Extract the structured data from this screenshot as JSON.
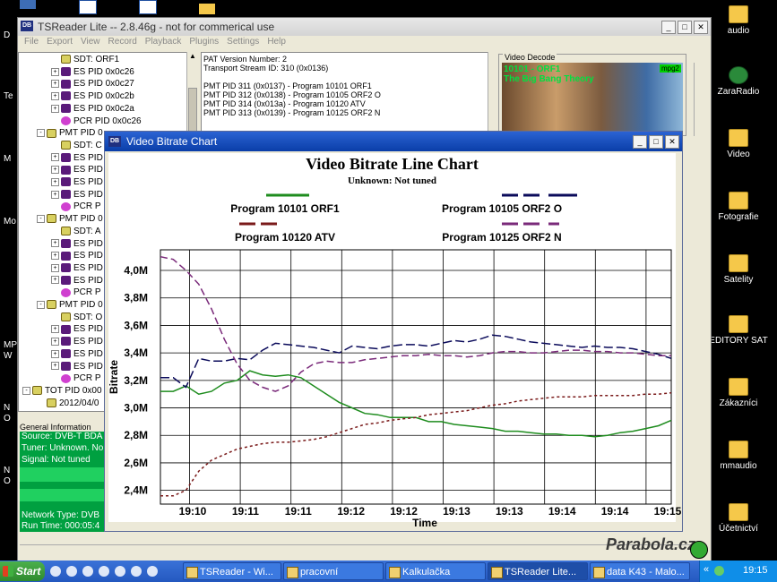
{
  "desktop": {
    "right_icons": [
      "audio",
      "ZaraRadio",
      "Video",
      "Fotografie",
      "Satelity",
      "EDITORY SAT",
      "Zákazníci",
      "mmaudio",
      "Účetnictví"
    ],
    "left_fragments": [
      "D",
      "Te",
      "M",
      "Mo",
      "MP",
      "W",
      "N",
      "O",
      "N",
      "O"
    ]
  },
  "main_window": {
    "title": "TSReader Lite -- 2.8.46g - not for commerical use",
    "menu": [
      "File",
      "Export",
      "View",
      "Record",
      "Playback",
      "Plugins",
      "Settings",
      "Help"
    ],
    "tree": [
      {
        "indent": 2,
        "box": "",
        "icon": "sdt",
        "label": "SDT: ORF1"
      },
      {
        "indent": 2,
        "box": "+",
        "icon": "es",
        "label": "ES PID 0x0c26"
      },
      {
        "indent": 2,
        "box": "+",
        "icon": "es",
        "label": "ES PID 0x0c27"
      },
      {
        "indent": 2,
        "box": "+",
        "icon": "es",
        "label": "ES PID 0x0c2b"
      },
      {
        "indent": 2,
        "box": "+",
        "icon": "es",
        "label": "ES PID 0x0c2a"
      },
      {
        "indent": 2,
        "box": "",
        "icon": "pcr",
        "label": "PCR PID 0x0c26"
      },
      {
        "indent": 1,
        "box": "-",
        "icon": "pmt",
        "label": "PMT PID 0"
      },
      {
        "indent": 2,
        "box": "",
        "icon": "sdt",
        "label": "SDT: C"
      },
      {
        "indent": 2,
        "box": "+",
        "icon": "es",
        "label": "ES PID"
      },
      {
        "indent": 2,
        "box": "+",
        "icon": "es",
        "label": "ES PID"
      },
      {
        "indent": 2,
        "box": "+",
        "icon": "es",
        "label": "ES PID"
      },
      {
        "indent": 2,
        "box": "+",
        "icon": "es",
        "label": "ES PID"
      },
      {
        "indent": 2,
        "box": "",
        "icon": "pcr",
        "label": "PCR P"
      },
      {
        "indent": 1,
        "box": "-",
        "icon": "pmt",
        "label": "PMT PID 0"
      },
      {
        "indent": 2,
        "box": "",
        "icon": "sdt",
        "label": "SDT: A"
      },
      {
        "indent": 2,
        "box": "+",
        "icon": "es",
        "label": "ES PID"
      },
      {
        "indent": 2,
        "box": "+",
        "icon": "es",
        "label": "ES PID"
      },
      {
        "indent": 2,
        "box": "+",
        "icon": "es",
        "label": "ES PID"
      },
      {
        "indent": 2,
        "box": "+",
        "icon": "es",
        "label": "ES PID"
      },
      {
        "indent": 2,
        "box": "",
        "icon": "pcr",
        "label": "PCR P"
      },
      {
        "indent": 1,
        "box": "-",
        "icon": "pmt",
        "label": "PMT PID 0"
      },
      {
        "indent": 2,
        "box": "",
        "icon": "sdt",
        "label": "SDT: O"
      },
      {
        "indent": 2,
        "box": "+",
        "icon": "es",
        "label": "ES PID"
      },
      {
        "indent": 2,
        "box": "+",
        "icon": "es",
        "label": "ES PID"
      },
      {
        "indent": 2,
        "box": "+",
        "icon": "es",
        "label": "ES PID"
      },
      {
        "indent": 2,
        "box": "+",
        "icon": "es",
        "label": "ES PID"
      },
      {
        "indent": 2,
        "box": "",
        "icon": "pcr",
        "label": "PCR P"
      },
      {
        "indent": 0,
        "box": "-",
        "icon": "sdt",
        "label": "TOT PID 0x00"
      },
      {
        "indent": 1,
        "box": "",
        "icon": "sdt",
        "label": "2012/04/0"
      }
    ],
    "info_lines": [
      "PAT Version Number: 2",
      "Transport Stream ID: 310 (0x0136)",
      "",
      "PMT PID 311 (0x0137) - Program 10101 ORF1",
      "PMT PID 312 (0x0138) - Program 10105 ORF2 O",
      "PMT PID 314 (0x013a) - Program 10120 ATV",
      "PMT PID 313 (0x0139) - Program 10125 ORF2 N"
    ],
    "video_decode": {
      "label": "Video Decode",
      "channel": "10101 - ORF1",
      "show": "The Big Bang Theory",
      "badge": "mpg2"
    },
    "general_info": {
      "header": "General Information",
      "lines": [
        "Source: DVB-T BDA",
        "Tuner: Unknown. No",
        "Signal: Not tuned",
        "Network Type: DVB",
        "Run Time: 000:05:4"
      ]
    }
  },
  "chart_window": {
    "title": "Video Bitrate Chart"
  },
  "chart_data": {
    "type": "line",
    "title": "Video Bitrate Line Chart",
    "subtitle": "Unknown: Not tuned",
    "xlabel": "Time",
    "ylabel": "Bitrate",
    "x_tick_labels": [
      "19:10",
      "19:11",
      "19:11",
      "19:12",
      "19:12",
      "19:13",
      "19:13",
      "19:14",
      "19:14",
      "19:15"
    ],
    "y_tick_labels": [
      "2,4M",
      "2,6M",
      "2,8M",
      "3,0M",
      "3,2M",
      "3,4M",
      "3,6M",
      "3,8M",
      "4,0M"
    ],
    "ylim": [
      2.3,
      4.15
    ],
    "xlim": [
      0,
      20
    ],
    "grid": true,
    "legend_position": "top",
    "series": [
      {
        "name": "Program 10101 ORF1",
        "color": "#1e8c1e",
        "dash": "solid",
        "x": [
          0,
          0.5,
          1,
          1.5,
          2,
          2.5,
          3,
          3.5,
          4,
          4.5,
          5,
          5.5,
          6,
          6.5,
          7,
          7.5,
          8,
          8.5,
          9,
          9.5,
          10,
          10.5,
          11,
          11.5,
          12,
          12.5,
          13,
          13.5,
          14,
          14.5,
          15,
          15.5,
          16,
          16.5,
          17,
          17.5,
          18,
          18.5,
          19,
          19.5,
          20
        ],
        "y": [
          3.12,
          3.12,
          3.16,
          3.1,
          3.12,
          3.18,
          3.2,
          3.27,
          3.24,
          3.23,
          3.24,
          3.22,
          3.16,
          3.1,
          3.04,
          3.0,
          2.96,
          2.95,
          2.93,
          2.93,
          2.93,
          2.9,
          2.9,
          2.88,
          2.87,
          2.86,
          2.85,
          2.83,
          2.83,
          2.82,
          2.81,
          2.81,
          2.8,
          2.8,
          2.79,
          2.8,
          2.82,
          2.83,
          2.85,
          2.87,
          2.91
        ]
      },
      {
        "name": "Program 10105 ORF2 O",
        "color": "#0a0a5a",
        "dash": "10,4",
        "x": [
          0,
          0.5,
          1,
          1.5,
          2,
          2.5,
          3,
          3.5,
          4,
          4.5,
          5,
          5.5,
          6,
          6.5,
          7,
          7.5,
          8,
          8.5,
          9,
          9.5,
          10,
          10.5,
          11,
          11.5,
          12,
          12.5,
          13,
          13.5,
          14,
          14.5,
          15,
          15.5,
          16,
          16.5,
          17,
          17.5,
          18,
          18.5,
          19,
          19.5,
          20
        ],
        "y": [
          3.22,
          3.22,
          3.15,
          3.36,
          3.34,
          3.34,
          3.36,
          3.35,
          3.42,
          3.47,
          3.46,
          3.45,
          3.44,
          3.42,
          3.4,
          3.45,
          3.44,
          3.43,
          3.45,
          3.46,
          3.46,
          3.45,
          3.47,
          3.49,
          3.48,
          3.5,
          3.53,
          3.52,
          3.5,
          3.48,
          3.47,
          3.46,
          3.45,
          3.44,
          3.45,
          3.44,
          3.44,
          3.43,
          3.41,
          3.39,
          3.36
        ]
      },
      {
        "name": "Program 10120 ATV",
        "color": "#7a1a1a",
        "dash": "3,3",
        "x": [
          0,
          0.5,
          1,
          1.5,
          2,
          2.5,
          3,
          3.5,
          4,
          4.5,
          5,
          5.5,
          6,
          6.5,
          7,
          7.5,
          8,
          8.5,
          9,
          9.5,
          10,
          10.5,
          11,
          11.5,
          12,
          12.5,
          13,
          13.5,
          14,
          14.5,
          15,
          15.5,
          16,
          16.5,
          17,
          17.5,
          18,
          18.5,
          19,
          19.5,
          20
        ],
        "y": [
          2.36,
          2.36,
          2.4,
          2.54,
          2.62,
          2.66,
          2.7,
          2.72,
          2.74,
          2.75,
          2.75,
          2.76,
          2.77,
          2.79,
          2.82,
          2.85,
          2.88,
          2.89,
          2.91,
          2.92,
          2.93,
          2.95,
          2.96,
          2.97,
          2.98,
          3.0,
          3.02,
          3.03,
          3.05,
          3.06,
          3.07,
          3.08,
          3.08,
          3.08,
          3.09,
          3.09,
          3.09,
          3.09,
          3.1,
          3.1,
          3.11
        ]
      },
      {
        "name": "Program 10125 ORF2 N",
        "color": "#7a2a7a",
        "dash": "8,4",
        "x": [
          0,
          0.5,
          1,
          1.5,
          2,
          2.5,
          3,
          3.5,
          4,
          4.5,
          5,
          5.5,
          6,
          6.5,
          7,
          7.5,
          8,
          8.5,
          9,
          9.5,
          10,
          10.5,
          11,
          11.5,
          12,
          12.5,
          13,
          13.5,
          14,
          14.5,
          15,
          15.5,
          16,
          16.5,
          17,
          17.5,
          18,
          18.5,
          19,
          19.5,
          20
        ],
        "y": [
          4.1,
          4.08,
          4.0,
          3.9,
          3.72,
          3.5,
          3.32,
          3.2,
          3.15,
          3.12,
          3.16,
          3.26,
          3.32,
          3.34,
          3.33,
          3.33,
          3.35,
          3.36,
          3.37,
          3.38,
          3.38,
          3.39,
          3.38,
          3.38,
          3.37,
          3.38,
          3.4,
          3.41,
          3.41,
          3.4,
          3.4,
          3.41,
          3.42,
          3.42,
          3.41,
          3.41,
          3.4,
          3.4,
          3.39,
          3.38,
          3.38
        ]
      }
    ]
  },
  "taskbar": {
    "start_label": "Start",
    "buttons": [
      {
        "label": "TSReader - Wi..."
      },
      {
        "label": "pracovní"
      },
      {
        "label": "Kalkulačka"
      },
      {
        "label": "TSReader Lite..."
      },
      {
        "label": "data K43 - Malo..."
      }
    ],
    "tray_chevron": "«",
    "clock": "19:15"
  },
  "watermark": "Parabola.cz",
  "colors": {
    "desktop_bg": "#000000",
    "chart_titlebar": "#0a3ea8",
    "general_info_bg": "#00a040",
    "taskbar": "#2458c0"
  }
}
